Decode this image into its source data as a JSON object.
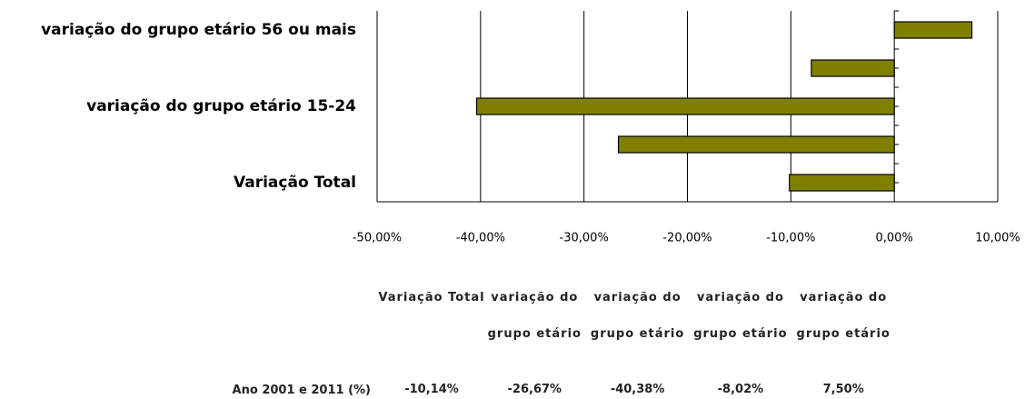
{
  "chart_data": {
    "type": "barh",
    "categories": [
      "Variação Total",
      null,
      "variação do grupo etário 15-24",
      null,
      "variação do grupo etário 56 ou mais"
    ],
    "series": [
      {
        "name": "Ano 2001 e 2011 (%)",
        "color": "#808000",
        "values": [
          -10.14,
          -26.67,
          -40.38,
          -8.02,
          7.5
        ],
        "value_labels": [
          "-10,14%",
          "-26,67%",
          "-40,38%",
          "-8,02%",
          "7,50%"
        ]
      }
    ],
    "table_headers": [
      "Variação Total",
      "variação do grupo etário",
      "variação do grupo etário",
      "variação do grupo etário",
      "variação do grupo etário"
    ],
    "xlim": [
      -50,
      10
    ],
    "xticks": [
      {
        "value": -50,
        "label": "-50,00%"
      },
      {
        "value": -40,
        "label": "-40,00%"
      },
      {
        "value": -30,
        "label": "-30,00%"
      },
      {
        "value": -20,
        "label": "-20,00%"
      },
      {
        "value": -10,
        "label": "-10,00%"
      },
      {
        "value": 0,
        "label": "0,00%"
      },
      {
        "value": 10,
        "label": "10,00%"
      }
    ],
    "grid": true
  }
}
